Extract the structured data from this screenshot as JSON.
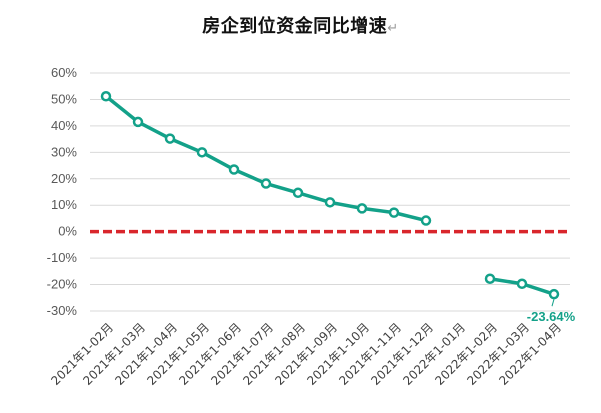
{
  "title": "房企到位资金同比增速",
  "title_mark": "↵",
  "chart_data": {
    "type": "line",
    "title": "房企到位资金同比增速",
    "xlabel": "",
    "ylabel": "",
    "categories": [
      "2021年1-02月",
      "2021年1-03月",
      "2021年1-04月",
      "2021年1-05月",
      "2021年1-06月",
      "2021年1-07月",
      "2021年1-08月",
      "2021年1-09月",
      "2021年1-10月",
      "2021年1-11月",
      "2021年1-12月",
      "2022年1-01月",
      "2022年1-02月",
      "2022年1-03月",
      "2022年1-04月"
    ],
    "series": [
      {
        "values": [
          51.2,
          41.5,
          35.2,
          30.0,
          23.5,
          18.2,
          14.7,
          11.1,
          8.8,
          7.2,
          4.2,
          null,
          -17.8,
          -19.7,
          -23.64
        ],
        "color": "#13a189"
      }
    ],
    "ylim": [
      -30,
      60
    ],
    "yticks": [
      "60%",
      "50%",
      "40%",
      "30%",
      "20%",
      "10%",
      "0%",
      "-10%",
      "-20%",
      "-30%"
    ],
    "ytick_values": [
      60,
      50,
      40,
      30,
      20,
      10,
      0,
      -10,
      -20,
      -30
    ],
    "grid": true,
    "zero_line_color": "#d9262c",
    "annotations": [
      {
        "category_index": 14,
        "text": "-23.64%",
        "color": "#13a189"
      }
    ]
  }
}
